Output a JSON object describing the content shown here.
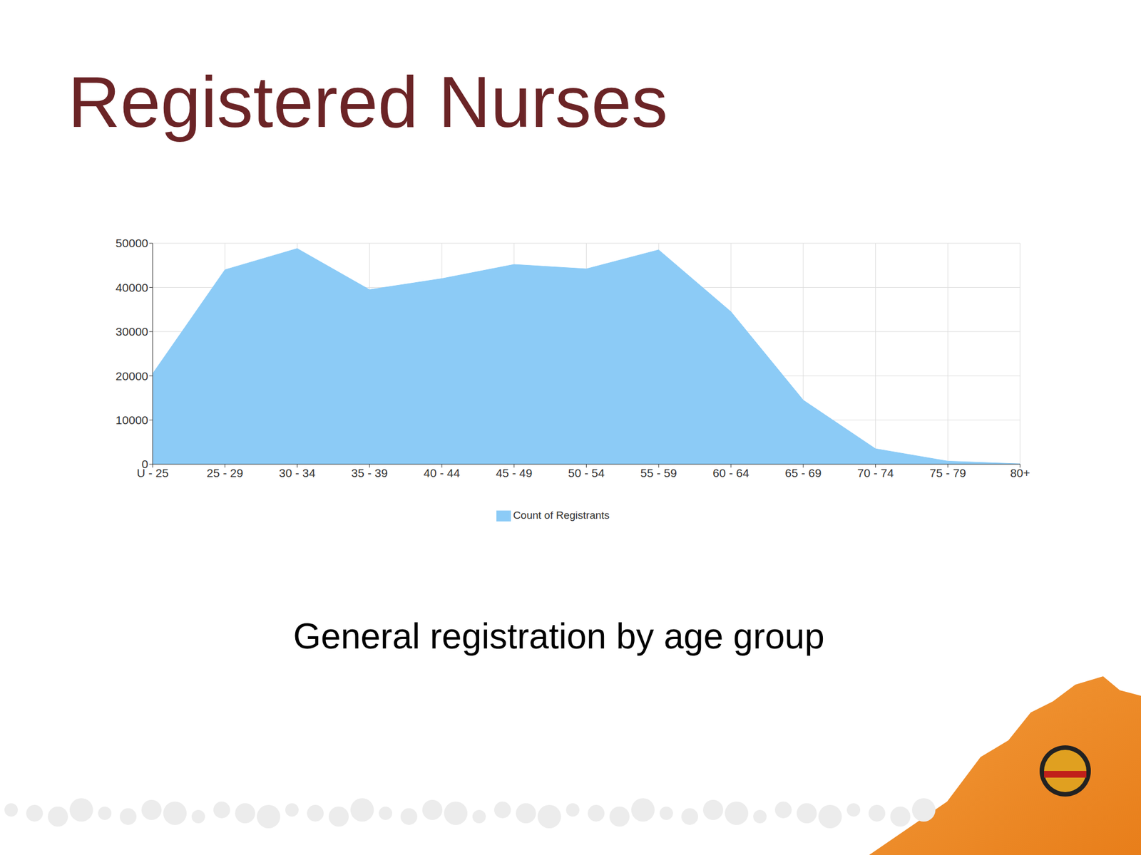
{
  "chart_data": {
    "type": "area",
    "title": "Registered Nurses",
    "subtitle": "General registration by age group",
    "categories": [
      "U - 25",
      "25 - 29",
      "30 - 34",
      "35 - 39",
      "40 - 44",
      "45 - 49",
      "50 - 54",
      "55 - 59",
      "60 - 64",
      "65 - 69",
      "70 - 74",
      "75 - 79",
      "80+"
    ],
    "series": [
      {
        "name": "Count of Registrants",
        "color": "#8ccbf6",
        "values": [
          20500,
          44000,
          48800,
          39500,
          42000,
          45200,
          44200,
          48500,
          34500,
          14500,
          3500,
          700,
          100
        ]
      }
    ],
    "ylim": [
      0,
      50000
    ],
    "yticks": [
      0,
      10000,
      20000,
      30000,
      40000,
      50000
    ],
    "grid": true,
    "legend": "bottom"
  }
}
